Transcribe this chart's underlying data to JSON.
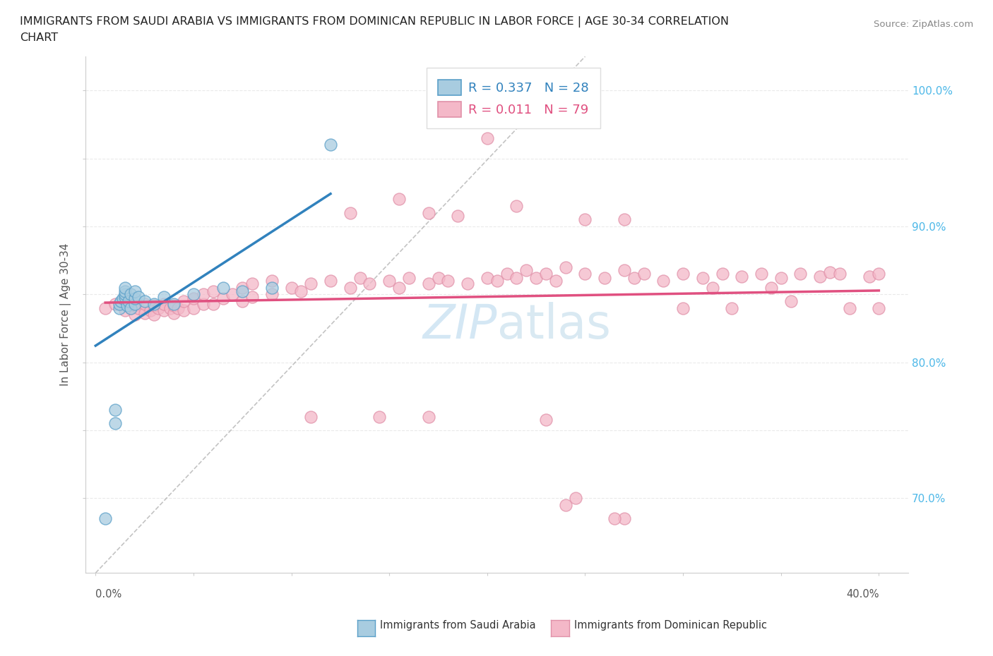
{
  "title_line1": "IMMIGRANTS FROM SAUDI ARABIA VS IMMIGRANTS FROM DOMINICAN REPUBLIC IN LABOR FORCE | AGE 30-34 CORRELATION",
  "title_line2": "CHART",
  "source": "Source: ZipAtlas.com",
  "ylabel": "In Labor Force | Age 30-34",
  "xlim": [
    -0.005,
    0.415
  ],
  "ylim": [
    0.645,
    1.025
  ],
  "xtick_positions": [
    0.0,
    0.05,
    0.1,
    0.15,
    0.2,
    0.25,
    0.3,
    0.35,
    0.4
  ],
  "ytick_positions": [
    0.7,
    0.75,
    0.8,
    0.85,
    0.9,
    0.95,
    1.0
  ],
  "right_ytick_labels": [
    "70.0%",
    "80.0%",
    "90.0%",
    "100.0%"
  ],
  "right_yticks": [
    0.7,
    0.8,
    0.9,
    1.0
  ],
  "legend_r1": "R = 0.337   N = 28",
  "legend_r2": "R = 0.011   N = 79",
  "color_blue": "#a8cce0",
  "color_pink": "#f4b8c8",
  "color_blue_line": "#3182bd",
  "color_pink_line": "#e05080",
  "color_blue_edge": "#5a9fc8",
  "color_pink_edge": "#e090a8",
  "watermark_color": "#b8d8ee",
  "saudi_x": [
    0.005,
    0.01,
    0.01,
    0.012,
    0.012,
    0.013,
    0.014,
    0.015,
    0.015,
    0.015,
    0.015,
    0.016,
    0.017,
    0.018,
    0.018,
    0.02,
    0.02,
    0.02,
    0.022,
    0.025,
    0.03,
    0.035,
    0.04,
    0.05,
    0.065,
    0.075,
    0.09,
    0.12
  ],
  "saudi_y": [
    0.685,
    0.755,
    0.765,
    0.84,
    0.843,
    0.845,
    0.847,
    0.848,
    0.85,
    0.852,
    0.855,
    0.842,
    0.845,
    0.84,
    0.85,
    0.843,
    0.847,
    0.852,
    0.848,
    0.845,
    0.843,
    0.848,
    0.843,
    0.85,
    0.855,
    0.852,
    0.855,
    0.96
  ],
  "dominican_x": [
    0.005,
    0.01,
    0.015,
    0.015,
    0.018,
    0.02,
    0.02,
    0.022,
    0.025,
    0.025,
    0.028,
    0.03,
    0.03,
    0.032,
    0.035,
    0.035,
    0.038,
    0.04,
    0.04,
    0.042,
    0.045,
    0.045,
    0.05,
    0.05,
    0.055,
    0.055,
    0.06,
    0.06,
    0.065,
    0.07,
    0.075,
    0.075,
    0.08,
    0.08,
    0.09,
    0.09,
    0.1,
    0.105,
    0.11,
    0.12,
    0.13,
    0.135,
    0.14,
    0.15,
    0.155,
    0.16,
    0.17,
    0.175,
    0.18,
    0.19,
    0.2,
    0.205,
    0.21,
    0.215,
    0.22,
    0.225,
    0.23,
    0.235,
    0.24,
    0.25,
    0.26,
    0.27,
    0.275,
    0.28,
    0.29,
    0.3,
    0.31,
    0.32,
    0.33,
    0.34,
    0.35,
    0.36,
    0.37,
    0.375,
    0.38,
    0.395,
    0.4,
    0.24,
    0.27
  ],
  "dominican_y": [
    0.84,
    0.843,
    0.838,
    0.845,
    0.84,
    0.835,
    0.842,
    0.84,
    0.836,
    0.843,
    0.838,
    0.835,
    0.842,
    0.84,
    0.838,
    0.843,
    0.84,
    0.836,
    0.842,
    0.84,
    0.838,
    0.845,
    0.84,
    0.847,
    0.843,
    0.85,
    0.843,
    0.852,
    0.847,
    0.85,
    0.845,
    0.855,
    0.848,
    0.858,
    0.85,
    0.86,
    0.855,
    0.852,
    0.858,
    0.86,
    0.855,
    0.862,
    0.858,
    0.86,
    0.855,
    0.862,
    0.858,
    0.862,
    0.86,
    0.858,
    0.862,
    0.86,
    0.865,
    0.862,
    0.868,
    0.862,
    0.865,
    0.86,
    0.87,
    0.865,
    0.862,
    0.868,
    0.862,
    0.865,
    0.86,
    0.865,
    0.862,
    0.865,
    0.863,
    0.865,
    0.862,
    0.865,
    0.863,
    0.866,
    0.865,
    0.863,
    0.865,
    0.695,
    0.685
  ],
  "dominican_outliers_x": [
    0.13,
    0.155,
    0.17,
    0.185,
    0.2,
    0.215,
    0.25,
    0.27,
    0.3,
    0.315,
    0.325,
    0.345,
    0.355,
    0.385
  ],
  "dominican_outliers_y": [
    0.91,
    0.92,
    0.91,
    0.908,
    0.965,
    0.915,
    0.905,
    0.905,
    0.84,
    0.855,
    0.84,
    0.855,
    0.845,
    0.84
  ],
  "dominican_low_x": [
    0.11,
    0.145,
    0.17,
    0.23,
    0.245,
    0.265,
    0.4
  ],
  "dominican_low_y": [
    0.76,
    0.76,
    0.76,
    0.758,
    0.7,
    0.685,
    0.84
  ]
}
